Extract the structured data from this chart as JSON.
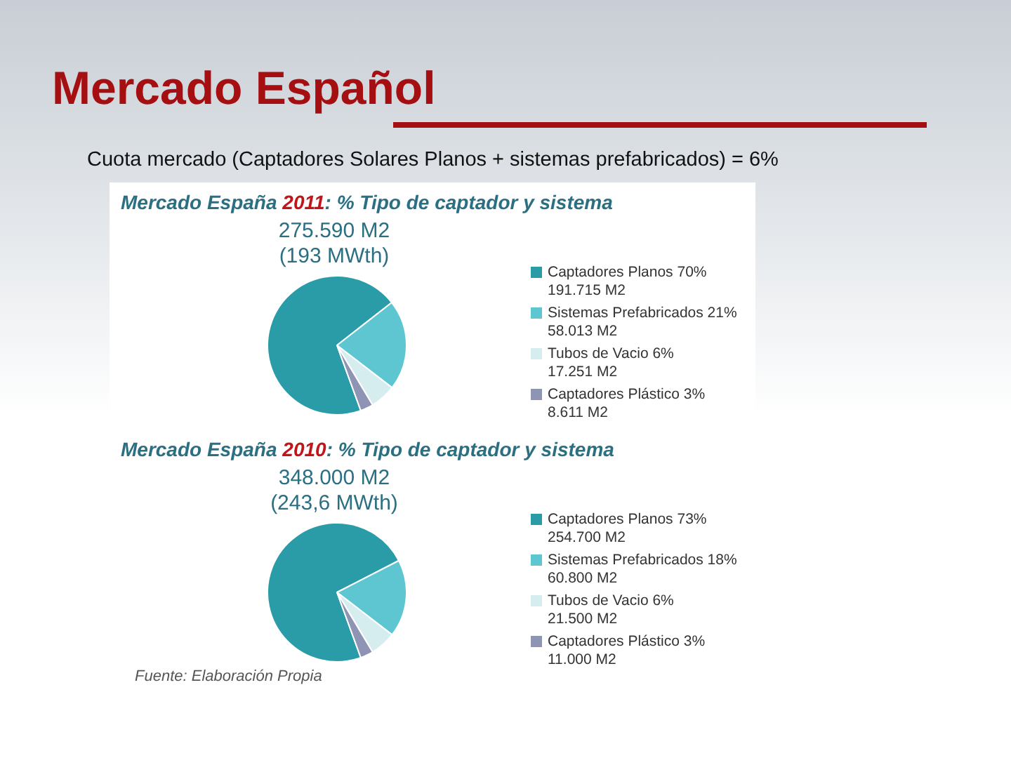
{
  "chart_data": [
    {
      "type": "other",
      "title": "Mercado Español",
      "subtitle": "Cuota mercado (Captadores Solares Planos + sistemas prefabricados) = 6%"
    },
    {
      "type": "pie",
      "title": "Mercado España 2011: % Tipo de captador y sistema",
      "subtitle": "275.590 M2\n(193 MWth)",
      "categories": [
        "Captadores Planos 70%\n191.715 M2",
        "Sistemas Prefabricados 21%\n58.013 M2",
        "Tubos de Vacio 6%\n17.251 M2",
        "Captadores Plástico 3%\n8.611 M2"
      ],
      "values": [
        70,
        21,
        6,
        3
      ],
      "colors": [
        "#2a9ca8",
        "#5ec6d1",
        "#d6edf0",
        "#8f93b4"
      ],
      "legend": "right"
    },
    {
      "type": "pie",
      "title": "Mercado España 2010: % Tipo de captador y sistema",
      "subtitle": "348.000 M2\n(243,6 MWth)",
      "categories": [
        "Captadores Planos 73%\n254.700 M2",
        "Sistemas Prefabricados 18%\n60.800 M2",
        "Tubos de Vacio 6%\n21.500 M2",
        "Captadores Plástico 3%\n11.000 M2"
      ],
      "values": [
        73,
        18,
        6,
        3
      ],
      "colors": [
        "#2a9ca8",
        "#5ec6d1",
        "#d6edf0",
        "#8f93b4"
      ],
      "legend": "right",
      "annotations": [
        "Fuente: Elaboración Propia"
      ]
    }
  ]
}
